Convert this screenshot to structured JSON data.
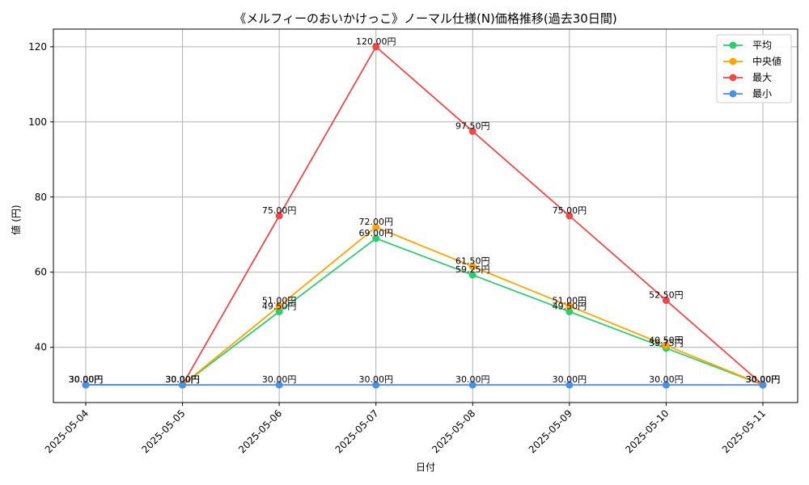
{
  "chart_data": {
    "type": "line",
    "title": "《メルフィーのおいかけっこ》ノーマル仕様(N)価格推移(過去30日間)",
    "xlabel": "日付",
    "ylabel": "値 (円)",
    "categories": [
      "2025-05-04",
      "2025-05-05",
      "2025-05-06",
      "2025-05-07",
      "2025-05-08",
      "2025-05-09",
      "2025-05-10",
      "2025-05-11"
    ],
    "ylim": [
      25.3,
      124.7
    ],
    "yticks": [
      40,
      60,
      80,
      100,
      120
    ],
    "grid": true,
    "legend_position": "top-right",
    "value_suffix": "円",
    "series": [
      {
        "name": "平均",
        "color": "#2ecc71",
        "values": [
          30.0,
          30.0,
          49.5,
          69.0,
          59.25,
          49.5,
          39.75,
          30.0
        ]
      },
      {
        "name": "中央値",
        "color": "#ffa500",
        "values": [
          30.0,
          30.0,
          51.0,
          72.0,
          61.5,
          51.0,
          40.5,
          30.0
        ]
      },
      {
        "name": "最大",
        "color": "#f04848",
        "values": [
          30.0,
          30.0,
          75.0,
          120.0,
          97.5,
          75.0,
          52.5,
          30.0
        ]
      },
      {
        "name": "最小",
        "color": "#4a90e8",
        "values": [
          30.0,
          30.0,
          30.0,
          30.0,
          30.0,
          30.0,
          30.0,
          30.0
        ]
      }
    ]
  }
}
